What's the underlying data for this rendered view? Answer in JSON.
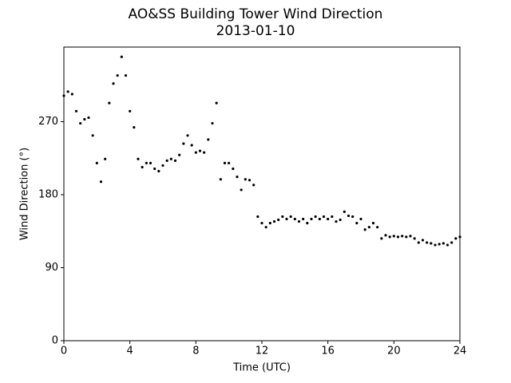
{
  "chart_data": {
    "type": "scatter",
    "title": "AO&SS Building Tower Wind Direction",
    "subtitle": "2013-01-10",
    "x_label": "Time (UTC)",
    "y_label": "Wind Direction (°)",
    "color": "#000000",
    "grid": false,
    "xlim": [
      0,
      24
    ],
    "xticks": [
      0,
      4,
      8,
      12,
      16,
      20,
      24
    ],
    "ylim": [
      0,
      362
    ],
    "yticks": [
      0,
      90,
      180,
      270
    ],
    "x": [
      0,
      0.25,
      0.5,
      0.75,
      1,
      1.25,
      1.5,
      1.75,
      2,
      2.25,
      2.5,
      2.75,
      3,
      3.25,
      3.5,
      3.75,
      4,
      4.25,
      4.5,
      4.75,
      5,
      5.25,
      5.5,
      5.75,
      6,
      6.25,
      6.5,
      6.75,
      7,
      7.25,
      7.5,
      7.75,
      8,
      8.25,
      8.5,
      8.75,
      9,
      9.25,
      9.5,
      9.75,
      10,
      10.25,
      10.5,
      10.75,
      11,
      11.25,
      11.5,
      11.75,
      12,
      12.25,
      12.5,
      12.75,
      13,
      13.25,
      13.5,
      13.75,
      14,
      14.25,
      14.5,
      14.75,
      15,
      15.25,
      15.5,
      15.75,
      16,
      16.25,
      16.5,
      16.75,
      17,
      17.25,
      17.5,
      17.75,
      18,
      18.25,
      18.5,
      18.75,
      19,
      19.25,
      19.5,
      19.75,
      20,
      20.25,
      20.5,
      20.75,
      21,
      21.25,
      21.5,
      21.75,
      22,
      22.25,
      22.5,
      22.75,
      23,
      23.25,
      23.5,
      23.75,
      24
    ],
    "values": [
      302,
      307,
      304,
      283,
      268,
      273,
      275,
      253,
      219,
      196,
      224,
      293,
      317,
      327,
      350,
      327,
      283,
      263,
      224,
      214,
      219,
      219,
      212,
      209,
      216,
      222,
      224,
      222,
      229,
      243,
      253,
      241,
      232,
      234,
      232,
      248,
      268,
      293,
      199,
      219,
      219,
      212,
      202,
      186,
      199,
      198,
      192,
      153,
      145,
      140,
      145,
      147,
      149,
      153,
      150,
      153,
      150,
      147,
      150,
      145,
      150,
      153,
      150,
      153,
      150,
      153,
      147,
      149,
      159,
      154,
      153,
      145,
      150,
      137,
      140,
      145,
      140,
      126,
      130,
      128,
      129,
      128,
      129,
      128,
      129,
      126,
      121,
      124,
      121,
      120,
      118,
      119,
      120,
      118,
      121,
      126,
      128
    ]
  }
}
